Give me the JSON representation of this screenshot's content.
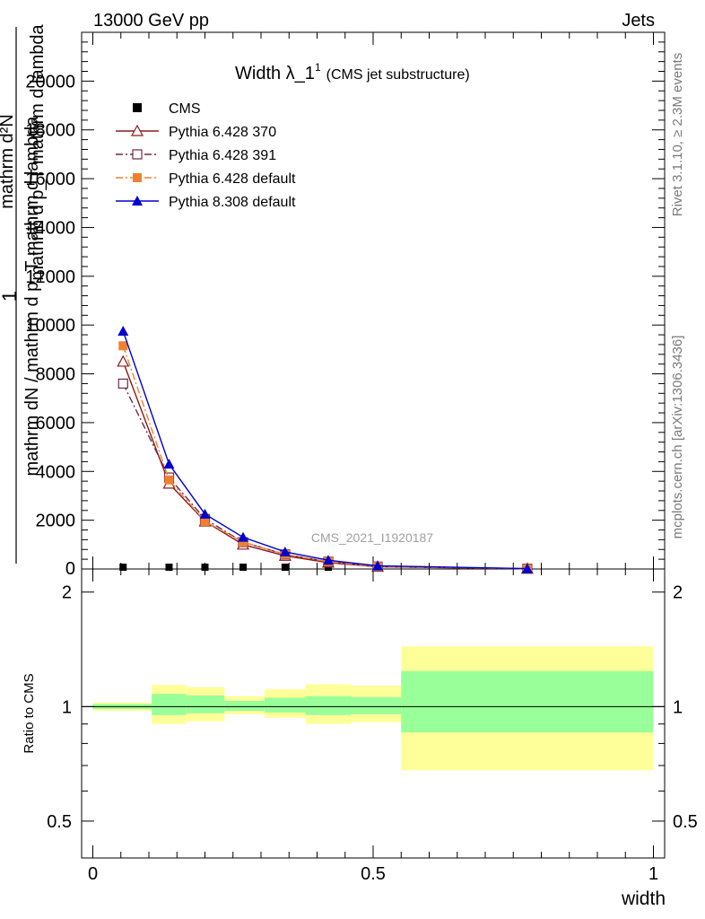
{
  "header": {
    "left": "13000 GeV pp",
    "right": "Jets"
  },
  "plot": {
    "title_main": "Width λ_1",
    "title_sup": "1",
    "title_sub": "(CMS jet substructure)",
    "watermark": "CMS_2021_I1920187",
    "ylabel_line1": "1",
    "ylabel_line2": "mathrm dN / mathrm d p_T mathrm d lambda",
    "ylabel_line3": "mathrm d²N",
    "ylabel_line4": "mathrm d p_T mathrm d lambda",
    "xlabel": "width",
    "ratio_ylabel": "Ratio to CMS",
    "side_right_top": "Rivet 3.1.10, ≥ 2.3M events",
    "side_right_bottom": "mcplots.cern.ch [arXiv:1306.3436]"
  },
  "chart_data": {
    "type": "line",
    "xlim": [
      -0.02,
      1.02
    ],
    "ylim": [
      0,
      22000
    ],
    "yticks": [
      2000,
      4000,
      6000,
      8000,
      10000,
      12000,
      14000,
      16000,
      18000,
      20000
    ],
    "ytick_labels": [
      "2000",
      "4000",
      "6000",
      "8000",
      "10000",
      "12000",
      "14000",
      "16000",
      "18000",
      "20000"
    ],
    "xticks": [
      0,
      0.5,
      1
    ],
    "xtick_labels": [
      "0",
      "0.5",
      "1"
    ],
    "ratio_ylim": [
      0.4,
      2.3
    ],
    "ratio_ytick_labels": [
      {
        "value": 0.5,
        "label": "0.5"
      },
      {
        "value": 1,
        "label": "1"
      },
      {
        "value": 2,
        "label": "2"
      }
    ],
    "x": [
      0.054,
      0.136,
      0.2,
      0.268,
      0.343,
      0.42,
      0.508,
      0.775
    ],
    "legend": {
      "placement": "top-left"
    },
    "series": [
      {
        "name": "CMS",
        "color": "#000000",
        "marker": "square-filled",
        "values": [
          0,
          0,
          0,
          0,
          0,
          0,
          0,
          0
        ]
      },
      {
        "name": "Pythia 6.428 370",
        "color": "#8b1a1a",
        "marker": "triangle-open",
        "dash": "solid",
        "values": [
          8500,
          3500,
          1950,
          1000,
          540,
          260,
          90,
          12
        ]
      },
      {
        "name": "Pythia 6.428 391",
        "color": "#6b2a4a",
        "marker": "square-open",
        "dash": "dashdot",
        "values": [
          7600,
          3750,
          2050,
          1100,
          600,
          300,
          100,
          14
        ]
      },
      {
        "name": "Pythia 6.428 default",
        "color": "#f08030",
        "marker": "square-filled",
        "dash": "dashdot",
        "values": [
          9150,
          3650,
          1950,
          1100,
          600,
          300,
          100,
          14
        ]
      },
      {
        "name": "Pythia 8.308 default",
        "color": "#0000cc",
        "marker": "triangle-filled",
        "dash": "solid",
        "values": [
          9750,
          4300,
          2250,
          1300,
          700,
          360,
          130,
          16
        ]
      }
    ],
    "ratio_bands": [
      {
        "x0": 0.0,
        "x1": 0.105,
        "stat": [
          0.985,
          1.015
        ],
        "total": [
          0.975,
          1.025
        ]
      },
      {
        "x0": 0.105,
        "x1": 0.167,
        "stat": [
          0.95,
          1.08
        ],
        "total": [
          0.9,
          1.14
        ]
      },
      {
        "x0": 0.167,
        "x1": 0.235,
        "stat": [
          0.96,
          1.07
        ],
        "total": [
          0.915,
          1.125
        ]
      },
      {
        "x0": 0.235,
        "x1": 0.306,
        "stat": [
          0.975,
          1.035
        ],
        "total": [
          0.955,
          1.065
        ]
      },
      {
        "x0": 0.306,
        "x1": 0.38,
        "stat": [
          0.965,
          1.055
        ],
        "total": [
          0.935,
          1.11
        ]
      },
      {
        "x0": 0.38,
        "x1": 0.46,
        "stat": [
          0.95,
          1.065
        ],
        "total": [
          0.9,
          1.145
        ]
      },
      {
        "x0": 0.46,
        "x1": 0.55,
        "stat": [
          0.955,
          1.06
        ],
        "total": [
          0.91,
          1.135
        ]
      },
      {
        "x0": 0.55,
        "x1": 1.0,
        "stat": [
          0.855,
          1.24
        ],
        "total": [
          0.68,
          1.44
        ]
      }
    ],
    "band_colors": {
      "stat": "#99ff99",
      "total": "#ffff99"
    }
  }
}
